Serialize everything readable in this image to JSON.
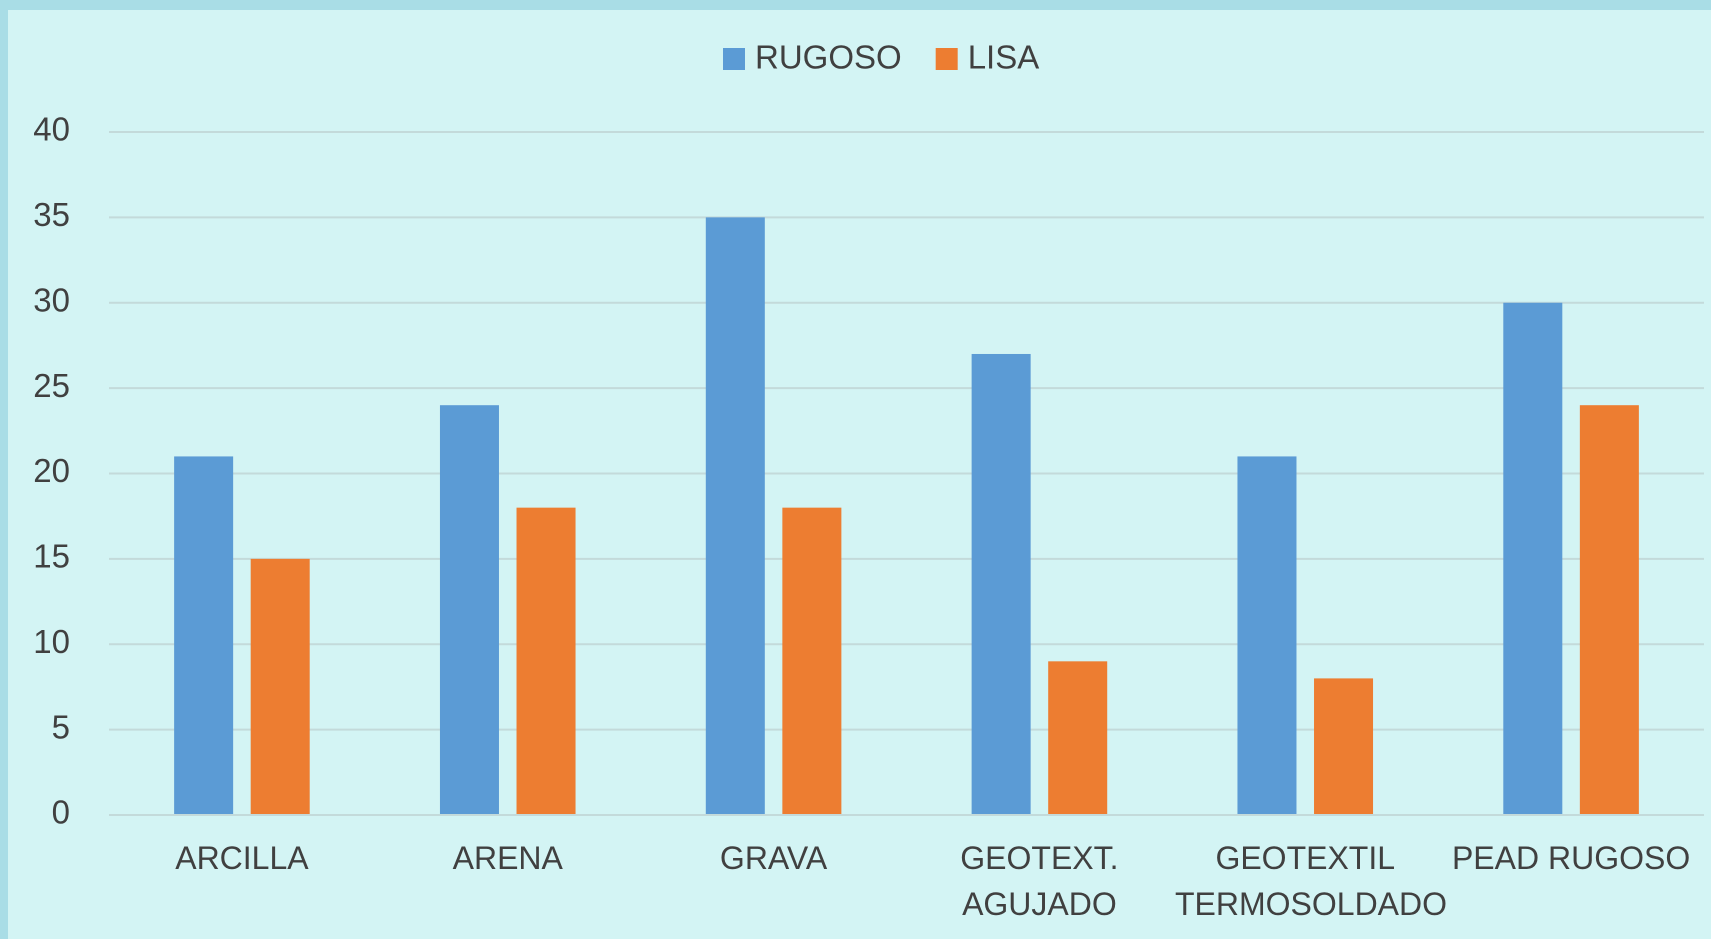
{
  "chart_data": {
    "type": "bar",
    "categories": [
      "ARCILLA",
      "ARENA",
      "GRAVA",
      "GEOTEXT. AGUJADO",
      "GEOTEXTIL TERMOSOLDADO",
      "PEAD RUGOSO"
    ],
    "series": [
      {
        "name": "RUGOSO",
        "color": "#5b9bd5",
        "values": [
          21,
          24,
          35,
          27,
          21,
          30
        ]
      },
      {
        "name": "LISA",
        "color": "#ed7d31",
        "values": [
          15,
          18,
          18,
          9,
          8,
          24
        ]
      }
    ],
    "ylim": [
      0,
      40
    ],
    "yticks": [
      0,
      5,
      10,
      15,
      20,
      25,
      30,
      35,
      40
    ],
    "grid": true,
    "legend": "top"
  }
}
